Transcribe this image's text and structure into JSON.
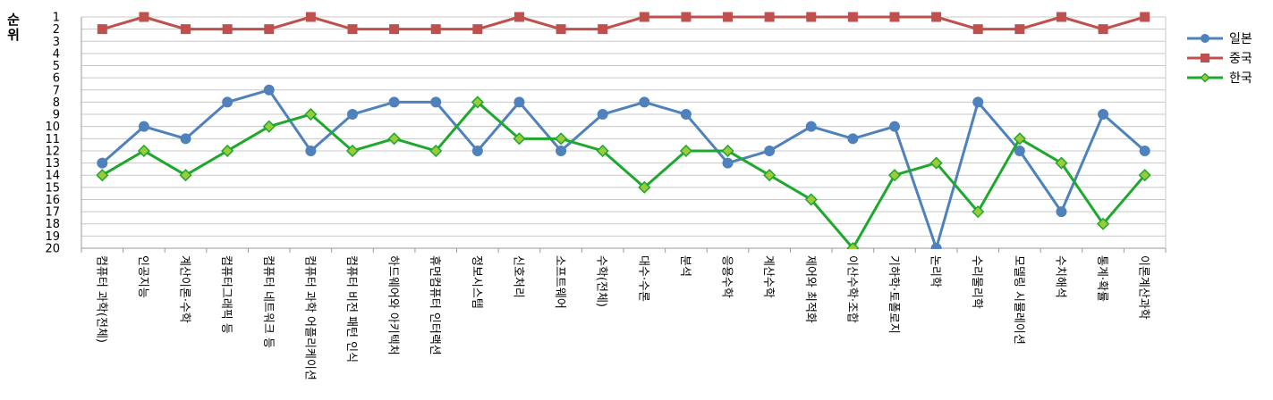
{
  "chart_data": {
    "type": "line",
    "ylabel": "순위",
    "ylim": [
      1,
      20
    ],
    "y_reversed": true,
    "grid": "horizontal",
    "legend_position": "right",
    "categories": [
      "컴퓨터 과학(전체)",
      "인공지능",
      "계산이론·수학",
      "컴퓨터그래픽 등",
      "컴퓨터 네트워크 등",
      "컴퓨터 과학 어플리케이션",
      "컴퓨터 비전 패턴 인식",
      "하드웨어와 아키텍처",
      "휴먼컴퓨터 인터랙션",
      "정보시스템",
      "신호처리",
      "소프트웨어",
      "수학(전체)",
      "대수·수론",
      "분석",
      "응용수학",
      "계산수학",
      "제어와 최적화",
      "이산수학·조합",
      "기하학·토폴로지",
      "논리학",
      "수리물리학",
      "모델링 시뮬레이션",
      "수치해석",
      "통계·확률",
      "이론계산과학"
    ],
    "series": [
      {
        "name": "일본",
        "color": "#4F81BD",
        "marker": "circle",
        "values": [
          13,
          10,
          11,
          8,
          7,
          12,
          9,
          8,
          8,
          12,
          8,
          12,
          9,
          8,
          9,
          13,
          12,
          10,
          11,
          10,
          20,
          8,
          12,
          17,
          9,
          12
        ]
      },
      {
        "name": "중국",
        "color": "#C0504D",
        "marker": "square",
        "values": [
          2,
          1,
          2,
          2,
          2,
          1,
          2,
          2,
          2,
          2,
          1,
          2,
          2,
          1,
          1,
          1,
          1,
          1,
          1,
          1,
          1,
          2,
          2,
          1,
          2,
          1
        ]
      },
      {
        "name": "한국",
        "color": "#1EA82E",
        "marker": "diamond",
        "marker_fill": "#9BCB3B",
        "values": [
          14,
          12,
          14,
          12,
          10,
          9,
          12,
          11,
          12,
          8,
          11,
          11,
          12,
          15,
          12,
          12,
          14,
          16,
          20,
          14,
          13,
          17,
          11,
          13,
          18,
          14
        ]
      }
    ]
  }
}
